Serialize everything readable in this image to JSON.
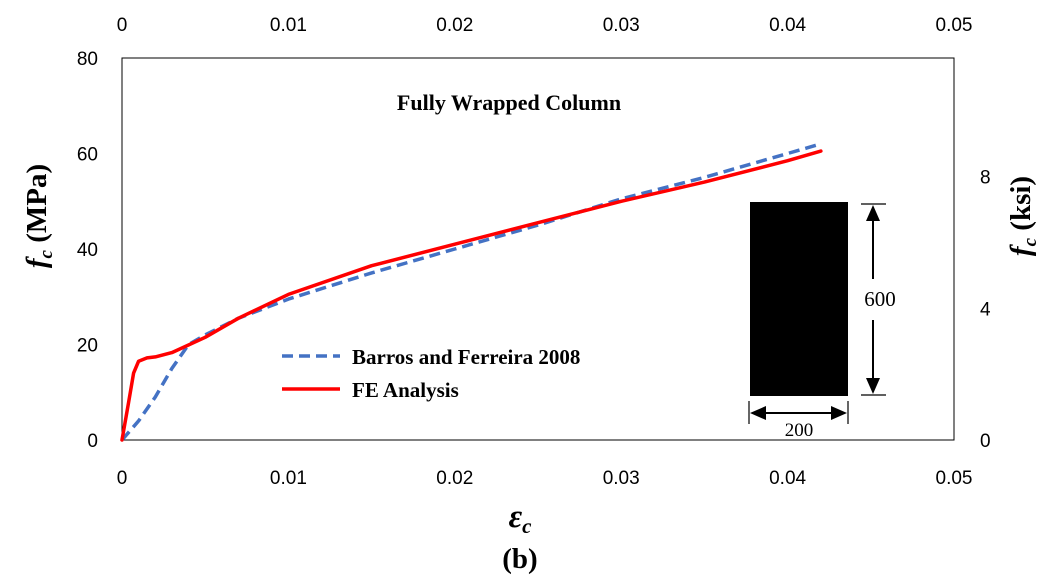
{
  "chart_data": {
    "type": "line",
    "title": "Fully Wrapped Column",
    "caption": "(b)",
    "xlabel": "ε",
    "xlabel_sub": "c",
    "ylabel_left": "f",
    "ylabel_left_sub": "c",
    "ylabel_left_unit": "(MPa)",
    "ylabel_right": "f",
    "ylabel_right_sub": "c",
    "ylabel_right_unit": "(ksi)",
    "xlim": [
      0,
      0.05
    ],
    "ylim": [
      0,
      80
    ],
    "x_ticks": [
      "0",
      "0.01",
      "0.02",
      "0.03",
      "0.04",
      "0.05"
    ],
    "x_tick_values": [
      0,
      0.01,
      0.02,
      0.03,
      0.04,
      0.05
    ],
    "y_ticks_left": [
      "0",
      "20",
      "40",
      "60",
      "80"
    ],
    "y_tick_values_left": [
      0,
      20,
      40,
      60,
      80
    ],
    "y_ticks_right": [
      "0",
      "4",
      "8"
    ],
    "y_tick_values_right_ksi": [
      0,
      4,
      8
    ],
    "grid": false,
    "legend_position": "center-left",
    "series": [
      {
        "name": "Barros and Ferreira 2008",
        "color": "#4472C4",
        "dash": true,
        "points": [
          [
            0,
            0
          ],
          [
            0.001,
            4
          ],
          [
            0.002,
            9
          ],
          [
            0.003,
            15
          ],
          [
            0.004,
            20
          ],
          [
            0.005,
            22
          ],
          [
            0.007,
            25.5
          ],
          [
            0.01,
            29.5
          ],
          [
            0.015,
            35
          ],
          [
            0.02,
            40
          ],
          [
            0.025,
            45
          ],
          [
            0.03,
            50.5
          ],
          [
            0.035,
            55
          ],
          [
            0.04,
            60
          ],
          [
            0.042,
            62
          ]
        ]
      },
      {
        "name": "FE Analysis",
        "color": "#FF0000",
        "dash": false,
        "points": [
          [
            0,
            0
          ],
          [
            0.0004,
            8
          ],
          [
            0.0007,
            14
          ],
          [
            0.001,
            16.5
          ],
          [
            0.0015,
            17.2
          ],
          [
            0.002,
            17.4
          ],
          [
            0.003,
            18.3
          ],
          [
            0.005,
            21.5
          ],
          [
            0.007,
            25.5
          ],
          [
            0.01,
            30.5
          ],
          [
            0.015,
            36.5
          ],
          [
            0.02,
            41
          ],
          [
            0.025,
            45.5
          ],
          [
            0.03,
            50
          ],
          [
            0.035,
            54
          ],
          [
            0.04,
            58.5
          ],
          [
            0.042,
            60.5
          ]
        ]
      }
    ],
    "inset": {
      "height_label": "600",
      "width_label": "200",
      "fill": "#000000"
    }
  }
}
